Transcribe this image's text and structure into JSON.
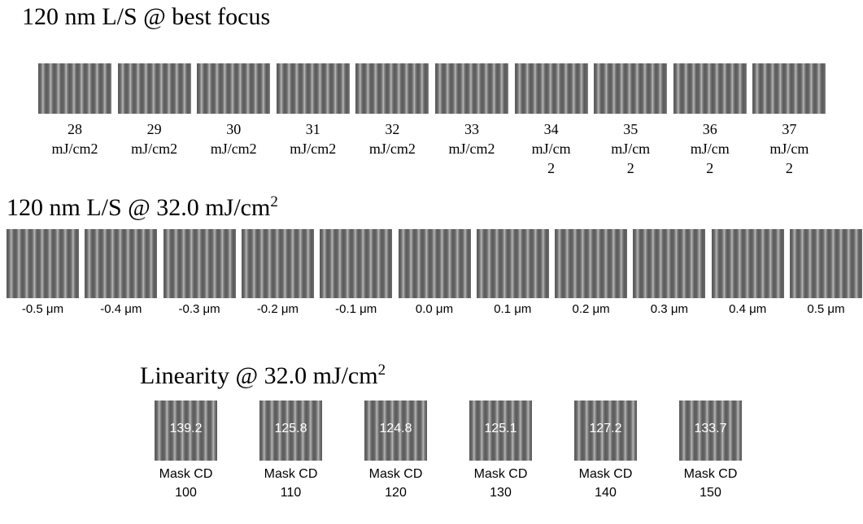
{
  "sections": [
    {
      "title": {
        "text": "120 nm L/S @ best focus"
      },
      "items": [
        {
          "label": [
            "28",
            "mJ/cm2"
          ]
        },
        {
          "label": [
            "29",
            "mJ/cm2"
          ]
        },
        {
          "label": [
            "30",
            "mJ/cm2"
          ]
        },
        {
          "label": [
            "31",
            "mJ/cm2"
          ]
        },
        {
          "label": [
            "32",
            "mJ/cm2"
          ]
        },
        {
          "label": [
            "33",
            "mJ/cm2"
          ]
        },
        {
          "label": [
            "34",
            "mJ/cm",
            "2"
          ]
        },
        {
          "label": [
            "35",
            "mJ/cm",
            "2"
          ]
        },
        {
          "label": [
            "36",
            "mJ/cm",
            "2"
          ]
        },
        {
          "label": [
            "37",
            "mJ/cm",
            "2"
          ]
        }
      ]
    },
    {
      "title": {
        "text": "120 nm L/S @ 32.0 mJ/cm",
        "sup": "2"
      },
      "items": [
        {
          "label": [
            "-0.5 μm"
          ]
        },
        {
          "label": [
            "-0.4 μm"
          ]
        },
        {
          "label": [
            "-0.3 μm"
          ]
        },
        {
          "label": [
            "-0.2 μm"
          ]
        },
        {
          "label": [
            "-0.1 μm"
          ]
        },
        {
          "label": [
            "0.0 μm"
          ]
        },
        {
          "label": [
            "0.1 μm"
          ]
        },
        {
          "label": [
            "0.2 μm"
          ]
        },
        {
          "label": [
            "0.3 μm"
          ]
        },
        {
          "label": [
            "0.4 μm"
          ]
        },
        {
          "label": [
            "0.5 μm"
          ]
        }
      ]
    },
    {
      "title": {
        "text": "Linearity @ 32.0 mJ/cm",
        "sup": "2"
      },
      "items": [
        {
          "overlay": "139.2",
          "label": [
            "Mask CD",
            "100"
          ]
        },
        {
          "overlay": "125.8",
          "label": [
            "Mask CD",
            "110"
          ]
        },
        {
          "overlay": "124.8",
          "label": [
            "Mask CD",
            "120"
          ]
        },
        {
          "overlay": "125.1",
          "label": [
            "Mask CD",
            "130"
          ]
        },
        {
          "overlay": "127.2",
          "label": [
            "Mask CD",
            "140"
          ]
        },
        {
          "overlay": "133.7",
          "label": [
            "Mask CD",
            "150"
          ]
        }
      ]
    }
  ]
}
